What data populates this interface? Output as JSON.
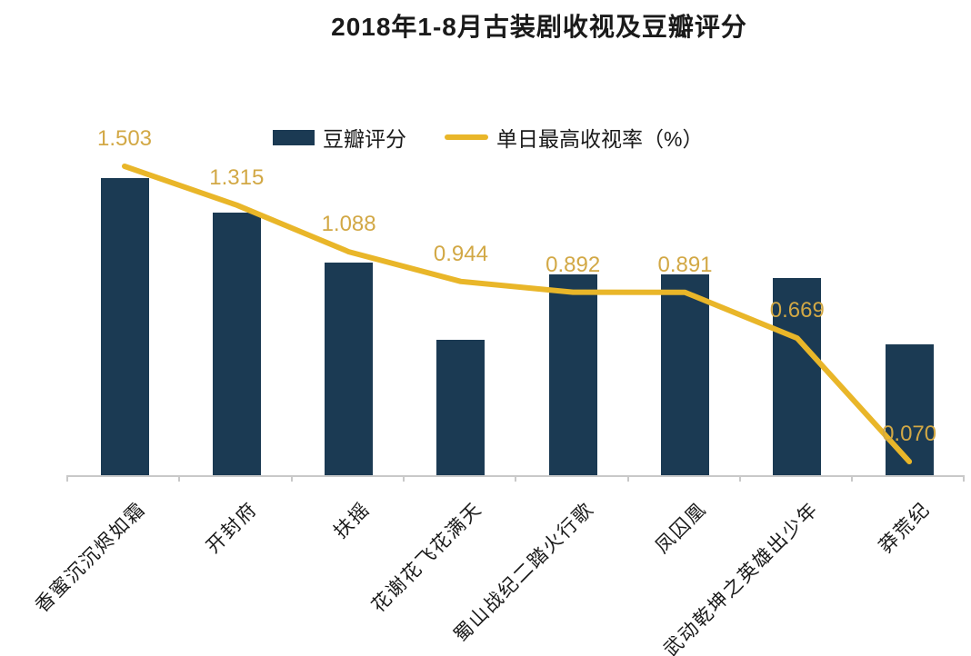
{
  "legend": {
    "bar_label": "豆瓣评分",
    "line_label": "单日最高收视率（%）"
  },
  "colors": {
    "bar": "#1B3A53",
    "line": "#E9B629",
    "value_label": "#D2A845",
    "axis": "#C9C9C9"
  },
  "chart_data": {
    "type": "combo (bar + line)",
    "title": "2018年1-8月古装剧收视及豆瓣评分",
    "categories": [
      "香蜜沉沉烬如霜",
      "开封府",
      "扶摇",
      "花谢花飞花满天",
      "蜀山战纪二踏火行歌",
      "凤囚凰",
      "武动乾坤之英雄出少年",
      "莽荒纪"
    ],
    "series": [
      {
        "name": "豆瓣评分",
        "type": "bar",
        "values_estimated": [
          7.7,
          6.8,
          5.5,
          3.5,
          5.2,
          5.2,
          5.1,
          3.4
        ],
        "data_labels_shown": false,
        "note": "bar axis not shown in chart; values estimated from relative bar heights (tallest = 7.7)"
      },
      {
        "name": "单日最高收视率（%）",
        "type": "line",
        "values": [
          1.503,
          1.315,
          1.088,
          0.944,
          0.892,
          0.891,
          0.669,
          0.07
        ],
        "data_labels_shown": true
      }
    ],
    "legend_position": "top-center",
    "grid": false,
    "y_axes_visible": false,
    "x_tick_label_rotation_deg": 45
  }
}
